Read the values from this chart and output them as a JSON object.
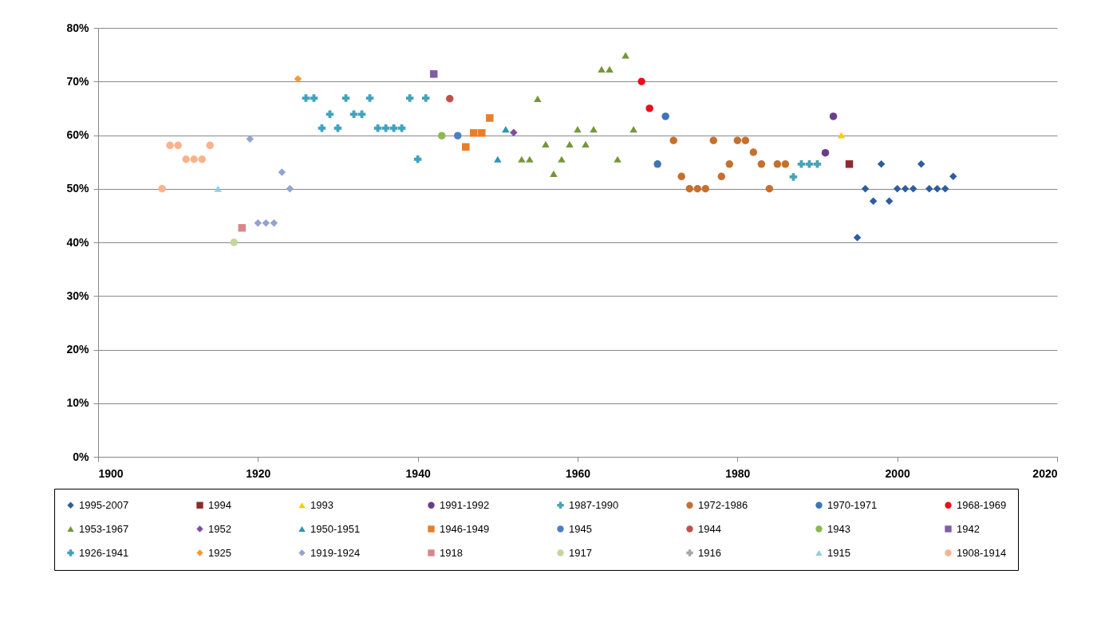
{
  "chart_data": {
    "type": "scatter",
    "xlim": [
      1900,
      2020
    ],
    "xticks": [
      1900,
      1920,
      1940,
      1960,
      1980,
      2000,
      2020
    ],
    "ylim": [
      0,
      80
    ],
    "yticks": [
      {
        "value": 0,
        "label": "0%"
      },
      {
        "value": 10,
        "label": "10%"
      },
      {
        "value": 20,
        "label": "20%"
      },
      {
        "value": 30,
        "label": "30%"
      },
      {
        "value": 40,
        "label": "40%"
      },
      {
        "value": 50,
        "label": "50%"
      },
      {
        "value": 60,
        "label": "60%"
      },
      {
        "value": 70,
        "label": "70%"
      },
      {
        "value": 80,
        "label": "80%"
      }
    ],
    "grid": "y",
    "legend": "bottom",
    "series": [
      {
        "name": "1995-2007",
        "color": "#2f5c9c",
        "marker": "diamond",
        "x": [
          1995,
          1996,
          1997,
          1998,
          1999,
          2000,
          2001,
          2002,
          2003,
          2004,
          2005,
          2006,
          2007
        ],
        "values": [
          40.9,
          50,
          47.7,
          54.6,
          47.7,
          50,
          50,
          50,
          54.6,
          50,
          50,
          50,
          52.3
        ]
      },
      {
        "name": "1994",
        "color": "#8b2c2c",
        "marker": "square",
        "x": [
          1994
        ],
        "values": [
          54.6
        ]
      },
      {
        "name": "1993",
        "color": "#f2d000",
        "marker": "triangle",
        "x": [
          1993
        ],
        "values": [
          60
        ]
      },
      {
        "name": "1991-1992",
        "color": "#6a3d8c",
        "marker": "circle",
        "x": [
          1991,
          1992
        ],
        "values": [
          56.7,
          63.5
        ]
      },
      {
        "name": "1987-1990",
        "color": "#4aa3b0",
        "marker": "cross",
        "x": [
          1987,
          1988,
          1989,
          1990
        ],
        "values": [
          52.2,
          54.6,
          54.6,
          54.6
        ]
      },
      {
        "name": "1972-1986",
        "color": "#c5702d",
        "marker": "circle",
        "x": [
          1972,
          1973,
          1974,
          1975,
          1976,
          1977,
          1978,
          1979,
          1980,
          1981,
          1982,
          1983,
          1984,
          1985,
          1986
        ],
        "values": [
          59,
          52.3,
          50,
          50,
          50,
          59,
          52.3,
          54.6,
          59,
          59,
          56.8,
          54.6,
          50,
          54.6,
          54.6
        ]
      },
      {
        "name": "1970-1971",
        "color": "#3d74b8",
        "marker": "circle",
        "x": [
          1970,
          1971
        ],
        "values": [
          54.6,
          63.5
        ]
      },
      {
        "name": "1968-1969",
        "color": "#e8101a",
        "marker": "circle",
        "x": [
          1968,
          1969
        ],
        "values": [
          70,
          65
        ]
      },
      {
        "name": "1953-1967",
        "color": "#77963b",
        "marker": "triangle",
        "x": [
          1953,
          1954,
          1955,
          1956,
          1957,
          1958,
          1959,
          1960,
          1961,
          1962,
          1963,
          1964,
          1965,
          1966,
          1967
        ],
        "values": [
          55.5,
          55.5,
          66.8,
          58.3,
          52.8,
          55.5,
          58.3,
          61.1,
          58.3,
          61.1,
          72.3,
          72.3,
          55.5,
          74.9,
          61.1
        ]
      },
      {
        "name": "1952",
        "color": "#7b4ea3",
        "marker": "diamond",
        "x": [
          1952
        ],
        "values": [
          60.5
        ]
      },
      {
        "name": "1950-1951",
        "color": "#2e95b0",
        "marker": "triangle",
        "x": [
          1950,
          1951
        ],
        "values": [
          55.5,
          61.1
        ]
      },
      {
        "name": "1946-1949",
        "color": "#e87d2a",
        "marker": "square",
        "x": [
          1946,
          1947,
          1948,
          1949
        ],
        "values": [
          57.8,
          60.4,
          60.4,
          63.2
        ]
      },
      {
        "name": "1945",
        "color": "#4a7fc4",
        "marker": "circle",
        "x": [
          1945
        ],
        "values": [
          59.9
        ]
      },
      {
        "name": "1944",
        "color": "#c0504d",
        "marker": "circle",
        "x": [
          1944
        ],
        "values": [
          66.8
        ]
      },
      {
        "name": "1943",
        "color": "#8db84e",
        "marker": "circle",
        "x": [
          1943
        ],
        "values": [
          59.9
        ]
      },
      {
        "name": "1942",
        "color": "#7f5ea8",
        "marker": "square",
        "x": [
          1942
        ],
        "values": [
          71.4
        ]
      },
      {
        "name": "1926-1941",
        "color": "#3fa3c0",
        "marker": "cross",
        "x": [
          1926,
          1927,
          1928,
          1929,
          1930,
          1931,
          1932,
          1933,
          1934,
          1935,
          1936,
          1937,
          1938,
          1939,
          1940,
          1941
        ],
        "values": [
          66.9,
          66.9,
          61.3,
          63.9,
          61.3,
          66.9,
          63.9,
          63.9,
          66.9,
          61.3,
          61.3,
          61.3,
          61.3,
          66.9,
          55.5,
          66.9
        ]
      },
      {
        "name": "1925",
        "color": "#f39a3a",
        "marker": "diamond",
        "x": [
          1925
        ],
        "values": [
          70.5
        ]
      },
      {
        "name": "1919-1924",
        "color": "#94a3cf",
        "marker": "diamond",
        "x": [
          1919,
          1920,
          1921,
          1922,
          1923,
          1924
        ],
        "values": [
          59.3,
          43.6,
          43.6,
          43.6,
          53.1,
          50
        ]
      },
      {
        "name": "1918",
        "color": "#d9878a",
        "marker": "square",
        "x": [
          1918
        ],
        "values": [
          42.7
        ]
      },
      {
        "name": "1917",
        "color": "#c3d69b",
        "marker": "circle",
        "x": [
          1917
        ],
        "values": [
          40
        ]
      },
      {
        "name": "1916",
        "color": "#a6a6a6",
        "marker": "cross"
      },
      {
        "name": "1915",
        "color": "#93cddd",
        "marker": "triangle",
        "x": [
          1915
        ],
        "values": [
          50
        ]
      },
      {
        "name": "1908-1914",
        "color": "#fab38c",
        "marker": "circle",
        "x": [
          1908,
          1909,
          1910,
          1911,
          1912,
          1913,
          1914
        ],
        "values": [
          50,
          58.1,
          58.1,
          55.5,
          55.5,
          55.5,
          58.1
        ]
      }
    ]
  }
}
